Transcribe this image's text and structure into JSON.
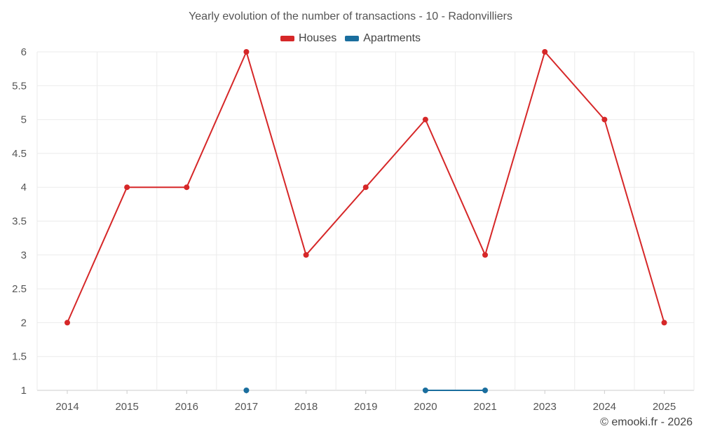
{
  "chart_data": {
    "type": "line",
    "title": "Yearly evolution of the number of transactions - 10 - Radonvilliers",
    "categories": [
      "2014",
      "2015",
      "2016",
      "2017",
      "2018",
      "2019",
      "2020",
      "2021",
      "2023",
      "2024",
      "2025"
    ],
    "series": [
      {
        "name": "Houses",
        "color": "#d62728",
        "values": [
          2,
          4,
          4,
          6,
          3,
          4,
          5,
          3,
          6,
          5,
          2
        ]
      },
      {
        "name": "Apartments",
        "color": "#1a6e9e",
        "values": [
          null,
          null,
          null,
          1,
          null,
          null,
          1,
          1,
          null,
          null,
          null
        ]
      }
    ],
    "y_ticks": [
      "1",
      "1.5",
      "2",
      "2.5",
      "3",
      "3.5",
      "4",
      "4.5",
      "5",
      "5.5",
      "6"
    ],
    "ylim": [
      1,
      6
    ],
    "xlabel": "",
    "ylabel": "",
    "grid": true,
    "legend_position": "top-center"
  },
  "credit": "© emooki.fr - 2026"
}
